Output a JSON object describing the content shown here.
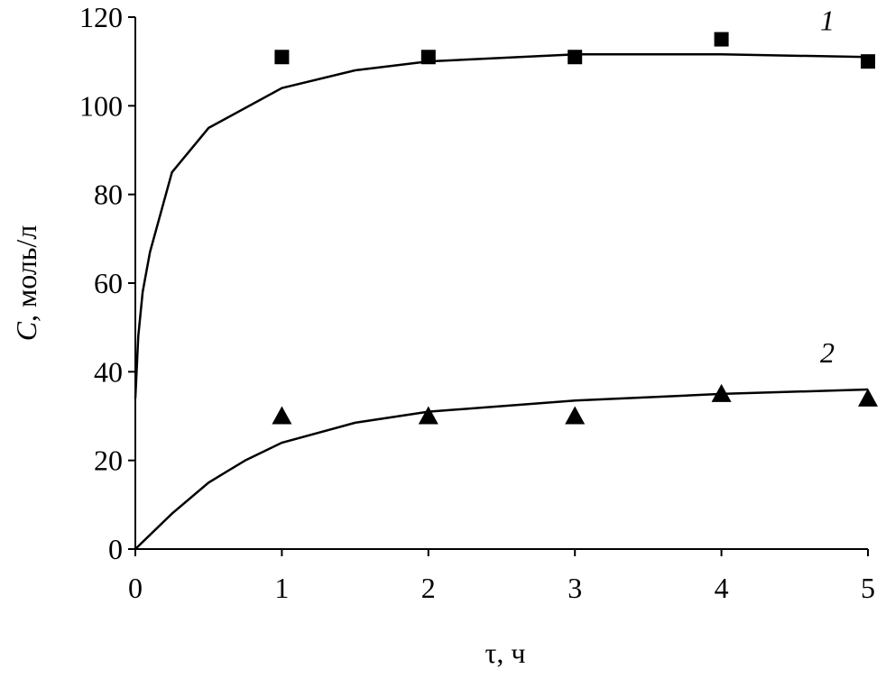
{
  "chart_data": {
    "type": "scatter",
    "xlabel": "τ, ч",
    "ylabel_symbol": "C",
    "ylabel_unit": ", моль/л",
    "xlim": [
      0,
      5
    ],
    "ylim": [
      0,
      120
    ],
    "xticks": [
      0,
      1,
      2,
      3,
      4,
      5
    ],
    "yticks": [
      0,
      20,
      40,
      60,
      80,
      100,
      120
    ],
    "color": "#000000",
    "series": [
      {
        "name": "1",
        "marker": "square",
        "x": [
          1,
          2,
          3,
          4,
          5
        ],
        "values": [
          111,
          111,
          111,
          115,
          110
        ],
        "curve_x": [
          0,
          0.02,
          0.05,
          0.1,
          0.25,
          0.5,
          1,
          1.5,
          2,
          3,
          4,
          5
        ],
        "curve_values": [
          34,
          48,
          58,
          67,
          85,
          95,
          104,
          108,
          110,
          111.6,
          111.6,
          111
        ]
      },
      {
        "name": "2",
        "marker": "triangle",
        "x": [
          1,
          2,
          3,
          4,
          5
        ],
        "values": [
          30,
          30,
          30,
          35,
          34
        ],
        "curve_x": [
          0,
          0.25,
          0.5,
          0.75,
          1,
          1.5,
          2,
          3,
          4,
          5
        ],
        "curve_values": [
          0,
          8,
          15,
          20,
          24,
          28.5,
          31,
          33.5,
          35,
          36
        ]
      }
    ]
  }
}
